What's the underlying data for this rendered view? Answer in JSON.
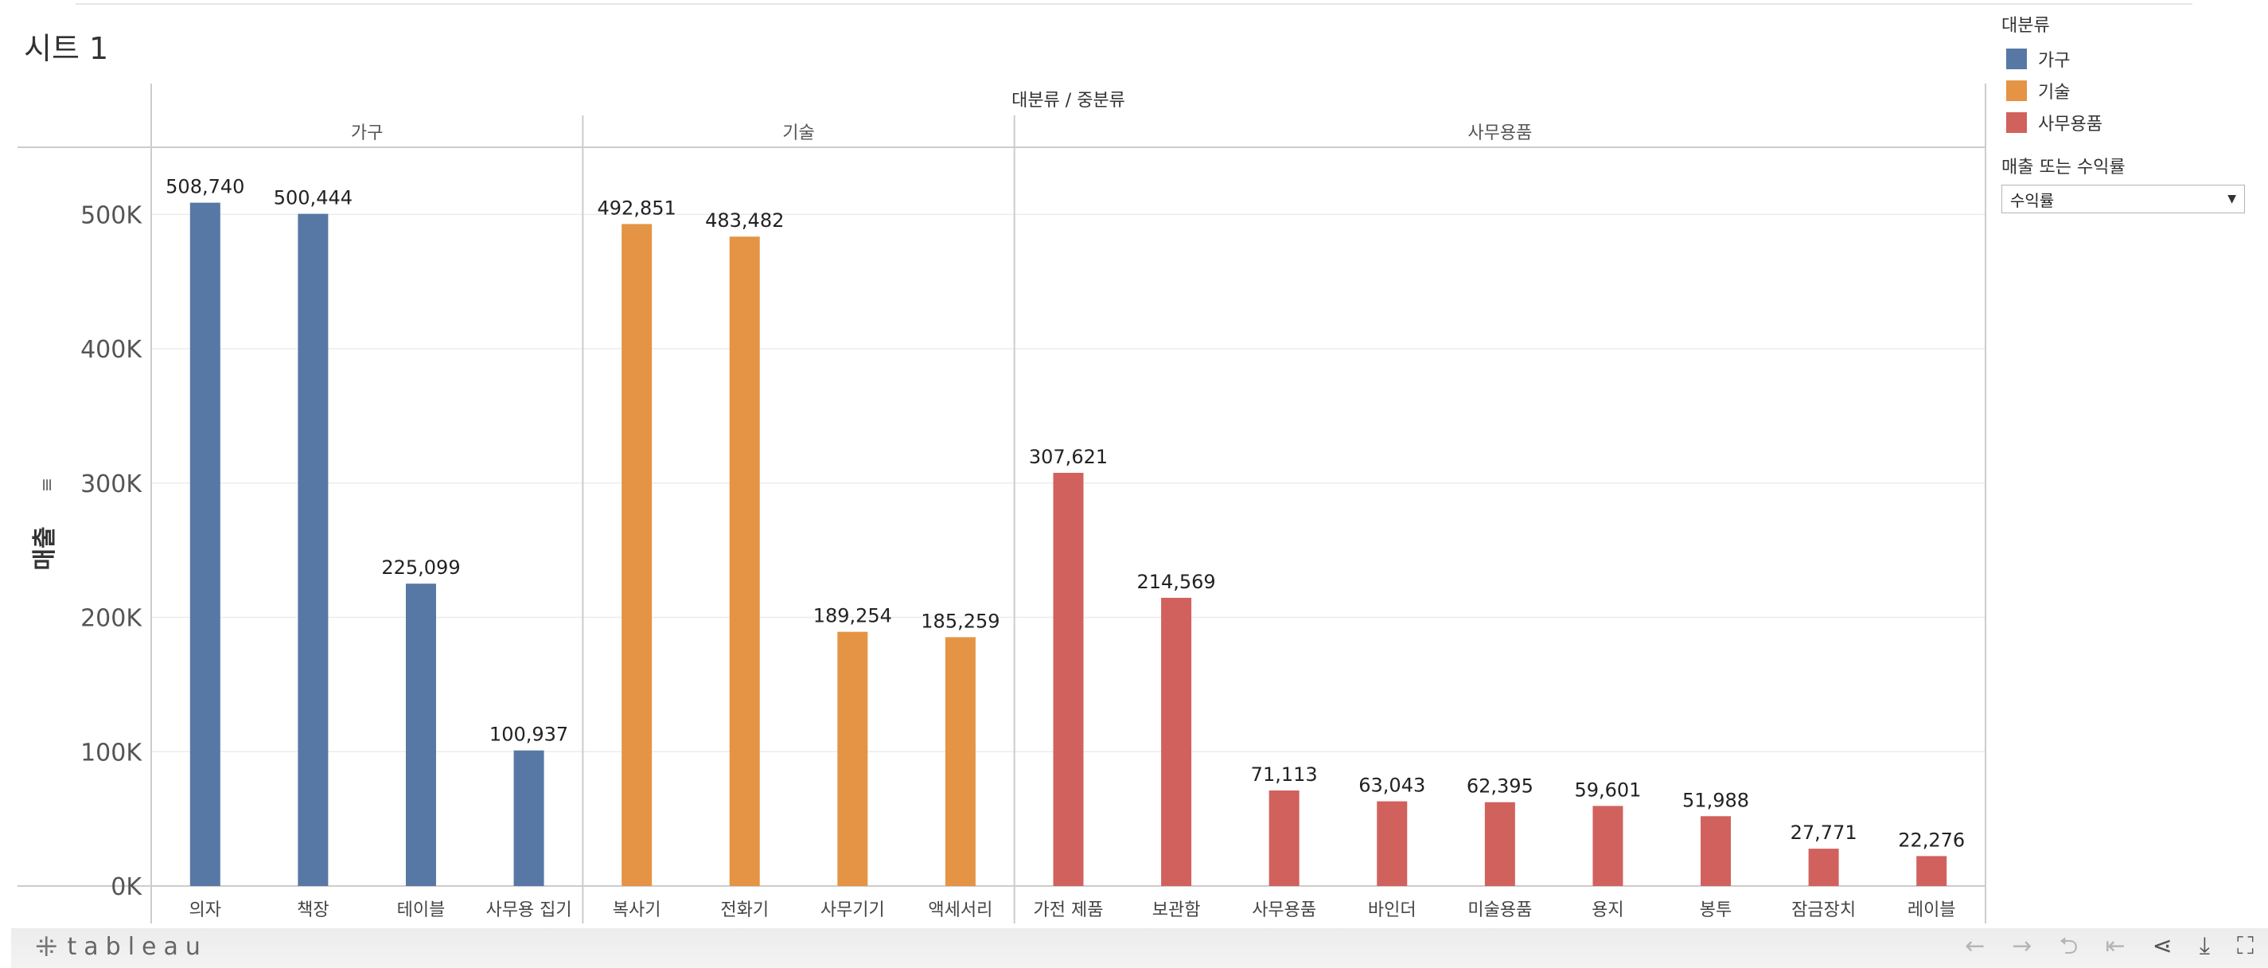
{
  "sheet": {
    "title": "시트 1"
  },
  "legend": {
    "title": "대분류",
    "items": [
      {
        "label": "가구",
        "color": "#5778a4"
      },
      {
        "label": "기술",
        "color": "#e49444"
      },
      {
        "label": "사무용품",
        "color": "#d1615d"
      }
    ]
  },
  "parameter": {
    "title": "매출 또는 수익률",
    "value": "수익률",
    "caret": "▼"
  },
  "footer": {
    "brand": "tableau",
    "brand_icon": "tableau-logo-icon"
  },
  "chart_data": {
    "type": "bar",
    "column_header": "대분류 / 중분류",
    "ylabel": "매출",
    "ylim": [
      0,
      550000
    ],
    "y_ticks": [
      0,
      100000,
      200000,
      300000,
      400000,
      500000
    ],
    "y_tick_labels": [
      "0K",
      "100K",
      "200K",
      "300K",
      "400K",
      "500K"
    ],
    "grid": true,
    "legend_position": "top-right",
    "groups": [
      {
        "name": "가구",
        "color": "#5778a4",
        "categories": [
          "의자",
          "책장",
          "테이블",
          "사무용 집기"
        ],
        "values": [
          508740,
          500444,
          225099,
          100937
        ],
        "labels": [
          "508,740",
          "500,444",
          "225,099",
          "100,937"
        ]
      },
      {
        "name": "기술",
        "color": "#e49444",
        "categories": [
          "복사기",
          "전화기",
          "사무기기",
          "액세서리"
        ],
        "values": [
          492851,
          483482,
          189254,
          185259
        ],
        "labels": [
          "492,851",
          "483,482",
          "189,254",
          "185,259"
        ]
      },
      {
        "name": "사무용품",
        "color": "#d1615d",
        "categories": [
          "가전 제품",
          "보관함",
          "사무용품",
          "바인더",
          "미술용품",
          "용지",
          "봉투",
          "잠금장치",
          "레이블"
        ],
        "values": [
          307621,
          214569,
          71113,
          63043,
          62395,
          59601,
          51988,
          27771,
          22276
        ],
        "labels": [
          "307,621",
          "214,569",
          "71,113",
          "63,043",
          "62,395",
          "59,601",
          "51,988",
          "27,771",
          "22,276"
        ]
      }
    ]
  }
}
